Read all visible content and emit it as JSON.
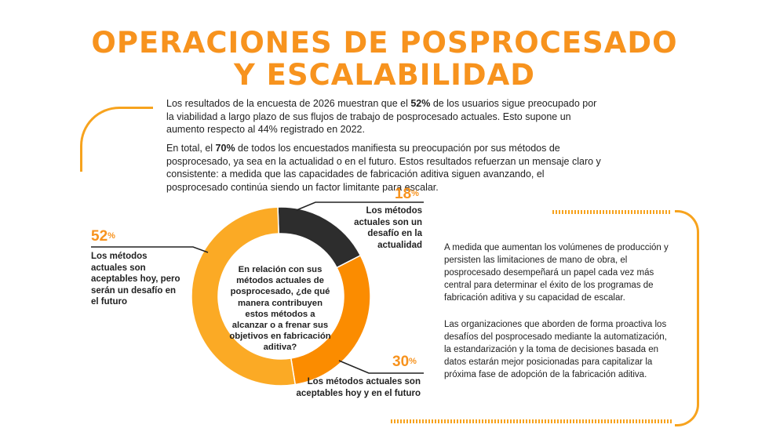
{
  "header": {
    "title_line1": "OPERACIONES DE POSPROCESADO",
    "title_line2": "Y ESCALABILIDAD"
  },
  "intro": {
    "p1": {
      "before": "Los resultados de la encuesta de 2026 muestran que el ",
      "bold": "52%",
      "after": " de los usuarios sigue preocupado por la viabilidad a largo plazo de sus flujos de trabajo de posprocesado actuales. Esto supone un aumento respecto al 44% registrado en 2022."
    },
    "p2": {
      "before": "En total, el ",
      "bold": "70%",
      "after": " de todos los encuestados manifiesta su preocupación por sus métodos de posprocesado, ya sea en la actualidad o en el futuro. Estos resultados refuerzan un mensaje claro y consistente: a medida que las capacidades de fabricación aditiva siguen avanzando, el posprocesado continúa siendo un factor limitante para escalar."
    }
  },
  "chart_data": {
    "type": "pie",
    "donut": true,
    "center_text": "En relación con sus métodos actuales de posprocesado, ¿de qué manera contribuyen estos métodos a alcanzar o a frenar sus objetivos en fabricación aditiva?",
    "slices": [
      {
        "value": 18,
        "display": "18",
        "unit": "%",
        "label": "Los métodos actuales son un desafío en la actualidad",
        "color": "#2d2d2d"
      },
      {
        "value": 30,
        "display": "30",
        "unit": "%",
        "label": "Los métodos actuales son aceptables hoy y en el futuro",
        "color": "#fb8c00"
      },
      {
        "value": 52,
        "display": "52",
        "unit": "%",
        "label": "Los métodos actuales son aceptables hoy, pero serán un desafío en el futuro",
        "color": "#fbaa25"
      }
    ]
  },
  "sidebar": {
    "p1": "A medida que aumentan los volúmenes de producción y persisten las limitaciones de mano de obra, el posprocesado desempeñará un papel cada vez más central para determinar el éxito de los programas de fabricación aditiva y su capacidad de escalar.",
    "p2": "Las organizaciones que aborden de forma proactiva los desafíos del posprocesado mediante la automatización, la estandarización y la toma de decisiones basada en datos estarán mejor posicionadas para capitalizar la próxima fase de adopción de la fabricación aditiva."
  },
  "colors": {
    "accent": "#f7931e",
    "line": "#f7a31e",
    "text": "#222222"
  }
}
